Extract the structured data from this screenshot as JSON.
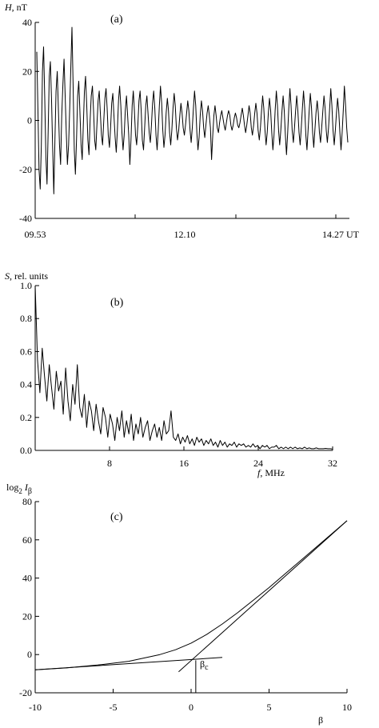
{
  "chart_data": [
    {
      "type": "line",
      "panel_label": "(a)",
      "ylabel": "H, nT",
      "ylabel_italic": "H",
      "ylabel_unit": ", nT",
      "xlabel_unit": "UT",
      "x_ticks": [
        "09.53",
        "12.10",
        "14.27 UT"
      ],
      "xlim": [
        0,
        274
      ],
      "ylim": [
        -40,
        40
      ],
      "y_ticks": [
        -40,
        -20,
        0,
        20,
        40
      ],
      "series": [
        {
          "values": [
            28,
            5,
            -20,
            -28,
            -10,
            20,
            30,
            10,
            -15,
            -26,
            -5,
            18,
            24,
            8,
            -12,
            -30,
            -8,
            12,
            20,
            5,
            -10,
            -18,
            2,
            15,
            25,
            10,
            -5,
            -18,
            -10,
            5,
            22,
            38,
            15,
            -12,
            -22,
            -8,
            10,
            16,
            4,
            -10,
            -16,
            -2,
            12,
            18,
            6,
            -8,
            -14,
            0,
            10,
            14,
            4,
            -8,
            -12,
            -2,
            8,
            12,
            3,
            -6,
            -10,
            0,
            9,
            13,
            5,
            -6,
            -11,
            -3,
            7,
            11,
            2,
            -7,
            -13,
            -4,
            8,
            14,
            6,
            -5,
            -12,
            -6,
            4,
            10,
            2,
            -6,
            -18,
            -8,
            6,
            12,
            4,
            -6,
            -10,
            -2,
            8,
            12,
            4,
            -8,
            -12,
            -3,
            6,
            10,
            3,
            -5,
            -9,
            -2,
            7,
            12,
            5,
            -6,
            -12,
            -4,
            6,
            14,
            7,
            -4,
            -11,
            -6,
            3,
            9,
            4,
            -5,
            -10,
            -4,
            5,
            11,
            6,
            -3,
            -8,
            -4,
            2,
            7,
            3,
            -3,
            -6,
            -2,
            3,
            8,
            4,
            -4,
            -9,
            -3,
            5,
            12,
            6,
            -5,
            -12,
            -7,
            2,
            8,
            4,
            -3,
            -7,
            -2,
            3,
            6,
            2,
            -3,
            -16,
            -6,
            2,
            6,
            2,
            -3,
            -5,
            -1,
            2,
            4,
            1,
            -2,
            -4,
            -1,
            2,
            4,
            2,
            -2,
            -4,
            -2,
            1,
            3,
            1,
            -2,
            -3,
            -1,
            2,
            5,
            2,
            -2,
            -5,
            -2,
            2,
            6,
            3,
            -3,
            -6,
            -2,
            3,
            7,
            3,
            -4,
            -8,
            -3,
            4,
            10,
            5,
            -4,
            -10,
            -5,
            3,
            9,
            4,
            -5,
            -12,
            -6,
            4,
            12,
            6,
            -4,
            -10,
            -4,
            4,
            10,
            4,
            -6,
            -14,
            -5,
            5,
            13,
            6,
            -4,
            -9,
            -3,
            4,
            10,
            4,
            -5,
            -10,
            -3,
            5,
            12,
            5,
            -6,
            -12,
            -4,
            4,
            11,
            5,
            -5,
            -11,
            -4,
            3,
            8,
            3,
            -5,
            -9,
            -3,
            4,
            10,
            5,
            -4,
            -9,
            -3,
            5,
            13,
            6,
            -4,
            -10,
            -4,
            3,
            9,
            4,
            -5,
            -12,
            -5,
            4,
            14,
            6,
            -3,
            -9
          ]
        }
      ]
    },
    {
      "type": "line",
      "panel_label": "(b)",
      "ylabel": "S, rel. units",
      "ylabel_italic": "S",
      "ylabel_unit": ", rel. units",
      "xlabel": "f, MHz",
      "xlabel_italic": "f",
      "xlabel_unit": ",  MHz",
      "xlim": [
        0,
        32
      ],
      "ylim": [
        0,
        1.0
      ],
      "x_ticks": [
        8,
        16,
        24,
        32
      ],
      "y_ticks": [
        "0.0",
        "0.2",
        "0.4",
        "0.6",
        "0.8",
        "1.0"
      ],
      "series": [
        {
          "values": [
            1.0,
            0.55,
            0.35,
            0.62,
            0.45,
            0.3,
            0.52,
            0.38,
            0.25,
            0.48,
            0.36,
            0.42,
            0.22,
            0.5,
            0.3,
            0.18,
            0.4,
            0.28,
            0.52,
            0.26,
            0.2,
            0.34,
            0.14,
            0.3,
            0.24,
            0.12,
            0.28,
            0.18,
            0.1,
            0.26,
            0.2,
            0.08,
            0.22,
            0.16,
            0.06,
            0.2,
            0.12,
            0.24,
            0.08,
            0.18,
            0.1,
            0.22,
            0.06,
            0.16,
            0.1,
            0.2,
            0.08,
            0.14,
            0.18,
            0.06,
            0.12,
            0.16,
            0.08,
            0.14,
            0.06,
            0.18,
            0.1,
            0.12,
            0.24,
            0.08,
            0.06,
            0.1,
            0.04,
            0.08,
            0.05,
            0.09,
            0.04,
            0.07,
            0.03,
            0.08,
            0.05,
            0.07,
            0.03,
            0.06,
            0.04,
            0.07,
            0.03,
            0.05,
            0.02,
            0.06,
            0.03,
            0.05,
            0.02,
            0.04,
            0.03,
            0.05,
            0.02,
            0.04,
            0.03,
            0.04,
            0.02,
            0.03,
            0.02,
            0.04,
            0.02,
            0.03,
            0.01,
            0.03,
            0.02,
            0.03,
            0.01,
            0.02,
            0.02,
            0.03,
            0.01,
            0.02,
            0.01,
            0.02,
            0.01,
            0.02,
            0.01,
            0.02,
            0.01,
            0.015,
            0.01,
            0.02,
            0.01,
            0.015,
            0.01,
            0.01,
            0.015,
            0.01,
            0.01,
            0.01,
            0.012,
            0.01,
            0.01,
            0.008
          ]
        }
      ]
    },
    {
      "type": "line",
      "panel_label": "(c)",
      "ylabel": "log2 Iβ",
      "ylabel_base": "log",
      "ylabel_sub1": "2",
      "ylabel_mid": " I",
      "ylabel_sub2": "β",
      "xlabel": "β",
      "annotation": "βc",
      "annotation_main": "β",
      "annotation_sub": "c",
      "xlim": [
        -10,
        10
      ],
      "ylim": [
        -20,
        80
      ],
      "x_ticks": [
        -10,
        -5,
        0,
        5,
        10
      ],
      "y_ticks": [
        -20,
        0,
        20,
        40,
        60,
        80
      ],
      "beta_c": 0.3,
      "series": [
        {
          "x": [
            -10,
            -8,
            -6,
            -4,
            -2,
            -1,
            0,
            1,
            2,
            3,
            4,
            5,
            6,
            7,
            8,
            9,
            10
          ],
          "values": [
            -8,
            -7,
            -5.5,
            -3.5,
            0,
            2.5,
            6,
            10.5,
            16,
            22,
            28.5,
            35,
            42,
            49,
            56,
            63,
            70
          ]
        },
        {
          "x": [
            -10,
            2
          ],
          "values": [
            -8,
            -1.5
          ]
        },
        {
          "x": [
            -0.8,
            10
          ],
          "values": [
            -9,
            70
          ]
        }
      ]
    }
  ]
}
